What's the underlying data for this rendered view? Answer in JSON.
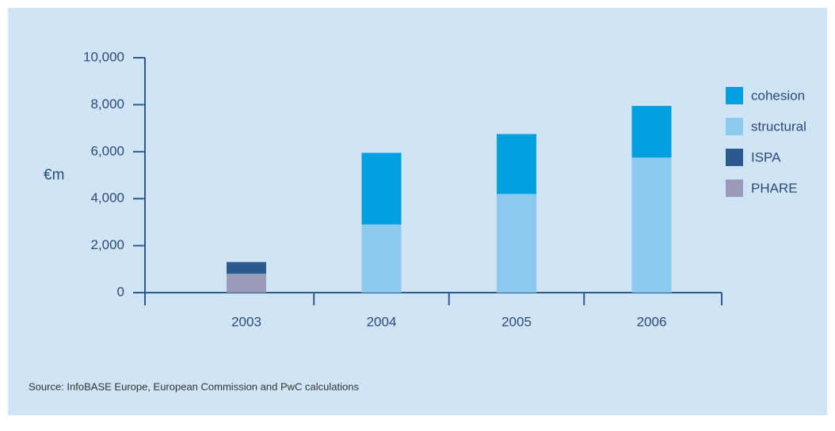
{
  "chart_data": {
    "type": "bar",
    "stacked": true,
    "y_label": "€m",
    "source": "Source: InfoBASE Europe, European Commission and PwC calculations",
    "categories": [
      "2003",
      "2004",
      "2005",
      "2006"
    ],
    "series": [
      {
        "name": "PHARE",
        "color": "#9a9bbb",
        "values": [
          800,
          null,
          null,
          null
        ]
      },
      {
        "name": "ISPA",
        "color": "#2b5a8f",
        "values": [
          500,
          null,
          null,
          null
        ]
      },
      {
        "name": "structural",
        "color": "#8cc9ee",
        "values": [
          null,
          2900,
          4200,
          5750
        ]
      },
      {
        "name": "cohesion",
        "color": "#009fe0",
        "values": [
          null,
          3050,
          2550,
          2200
        ]
      }
    ],
    "ylim": [
      0,
      10000
    ],
    "yticks": [
      0,
      {
        "value": 2000,
        "label": "2,000"
      },
      {
        "value": 4000,
        "label": "4,000"
      },
      {
        "value": 6000,
        "label": "6,000"
      },
      {
        "value": 8000,
        "label": "8,000"
      },
      {
        "value": 10000,
        "label": "10,000"
      }
    ],
    "legend": "right"
  }
}
